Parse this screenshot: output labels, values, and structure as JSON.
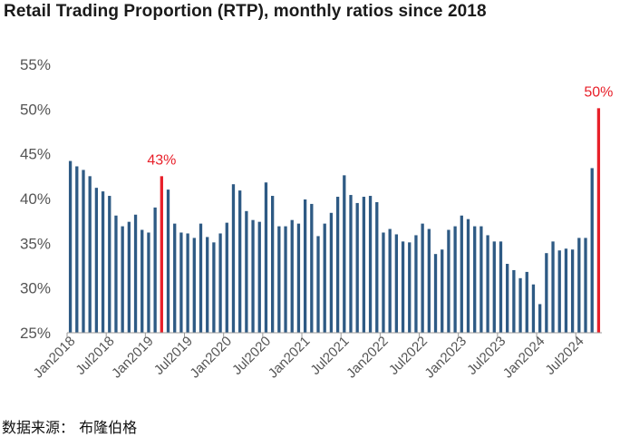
{
  "chart_data": {
    "type": "bar",
    "title": "Retail Trading Proportion (RTP), monthly ratios since 2018",
    "xlabel": "",
    "ylabel": "",
    "ylim": [
      25,
      55
    ],
    "y_ticks": [
      "25%",
      "30%",
      "35%",
      "40%",
      "45%",
      "50%",
      "55%"
    ],
    "y_tick_values": [
      25,
      30,
      35,
      40,
      45,
      50,
      55
    ],
    "x_ticks": [
      {
        "label": "Jan2018",
        "index": 0
      },
      {
        "label": "Jul2018",
        "index": 6
      },
      {
        "label": "Jan2019",
        "index": 12
      },
      {
        "label": "Jul2019",
        "index": 18
      },
      {
        "label": "Jan2020",
        "index": 24
      },
      {
        "label": "Jul2020",
        "index": 30
      },
      {
        "label": "Jan2021",
        "index": 36
      },
      {
        "label": "Jul2021",
        "index": 42
      },
      {
        "label": "Jan2022",
        "index": 48
      },
      {
        "label": "Jul2022",
        "index": 54
      },
      {
        "label": "Jan2023",
        "index": 60
      },
      {
        "label": "Jul2023",
        "index": 66
      },
      {
        "label": "Jan2024",
        "index": 72
      },
      {
        "label": "Jul2024",
        "index": 78
      }
    ],
    "series": [
      {
        "name": "RTP",
        "color": "#2e5a84",
        "values": [
          44.2,
          43.6,
          43.2,
          42.5,
          41.2,
          40.8,
          40.3,
          38.1,
          36.9,
          37.4,
          38.2,
          36.5,
          36.2,
          39.0,
          42.5,
          41.0,
          37.2,
          36.2,
          36.1,
          35.6,
          37.2,
          35.7,
          35.1,
          36.1,
          37.3,
          41.6,
          40.9,
          38.6,
          37.6,
          37.4,
          41.8,
          40.3,
          36.9,
          36.9,
          37.6,
          37.2,
          39.9,
          39.4,
          35.8,
          37.2,
          38.4,
          40.2,
          42.6,
          40.4,
          39.5,
          40.2,
          40.3,
          39.6,
          36.2,
          36.6,
          36.0,
          35.2,
          35.1,
          35.9,
          37.2,
          36.6,
          33.8,
          34.3,
          36.5,
          36.9,
          38.1,
          37.7,
          36.9,
          36.9,
          35.9,
          35.2,
          35.2,
          32.7,
          32.0,
          31.1,
          31.8,
          30.4,
          28.2,
          33.9,
          35.2,
          34.2,
          34.4,
          34.3,
          35.6,
          35.6,
          43.4,
          50.1
        ]
      }
    ],
    "highlight_color": "#e8202a",
    "highlights": [
      {
        "index": 14,
        "label": "43%"
      },
      {
        "index": 81,
        "label": "50%"
      }
    ]
  },
  "source_note": "数据来源：  布隆伯格"
}
